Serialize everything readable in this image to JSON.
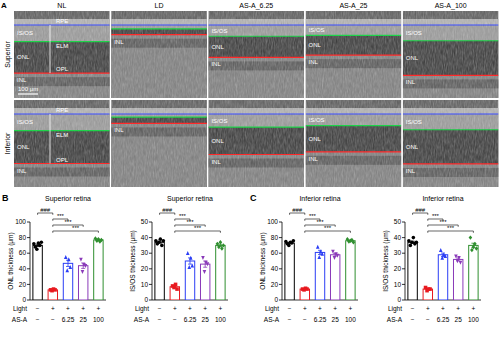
{
  "figure": {
    "panel_labels": [
      "A",
      "B",
      "C"
    ],
    "images": {
      "columns": [
        "NL",
        "LD",
        "AS-A_6.25",
        "AS-A_25",
        "AS-A_100"
      ],
      "rows": [
        "Superior",
        "Inferior"
      ],
      "layer_labels": [
        [
          "RPE",
          "IS/OS",
          "ELM",
          "ONL",
          "OPL",
          "INL"
        ],
        [
          "INL"
        ],
        [
          "IS/OS",
          "ONL",
          "INL"
        ],
        [
          "IS/OS",
          "ONL",
          "INL"
        ],
        [
          "IS/OS",
          "ONL",
          "INL"
        ]
      ],
      "scale_bar": "100 μm"
    }
  },
  "chart_data": [
    {
      "type": "bar",
      "title": "Superior retina",
      "y_label": "ONL thickness (μm)",
      "categories": [
        null,
        null,
        null,
        null,
        null
      ],
      "values": [
        70,
        13,
        47,
        44,
        77
      ],
      "errors": [
        1.5,
        0.5,
        4,
        3.5,
        1
      ],
      "points": [
        [
          72,
          68,
          65,
          73,
          70,
          74
        ],
        [
          13,
          12,
          14,
          13
        ],
        [
          55,
          38,
          52,
          42
        ],
        [
          52,
          36,
          45,
          44
        ],
        [
          79,
          76,
          78,
          75,
          77
        ]
      ],
      "colors": [
        "#000000",
        "#e8191f",
        "#2a3df5",
        "#8a3ab9",
        "#2f8f2f"
      ],
      "ylim": [
        0,
        100
      ],
      "yticks": [
        0,
        20,
        40,
        60,
        80,
        100
      ],
      "x_table": [
        {
          "label": "Light",
          "values": [
            "−",
            "+",
            "+",
            "+",
            "+"
          ]
        },
        {
          "label": "AS-A",
          "values": [
            "−",
            "−",
            "6.25",
            "25",
            "100"
          ]
        }
      ],
      "comparisons": [
        {
          "groups": [
            0,
            1
          ],
          "label": "###"
        },
        {
          "groups": [
            1,
            2
          ],
          "label": "***"
        },
        {
          "groups": [
            1,
            3
          ],
          "label": "***"
        },
        {
          "groups": [
            1,
            4
          ],
          "label": "***"
        }
      ]
    },
    {
      "type": "bar",
      "title": "Superior retina",
      "y_label": "IS/OS thickness (μm)",
      "categories": [
        null,
        null,
        null,
        null,
        null
      ],
      "values": [
        37,
        8.5,
        25,
        23,
        35
      ],
      "errors": [
        0.6,
        0.6,
        2,
        2,
        0.7
      ],
      "points": [
        [
          38,
          36,
          37,
          39,
          35,
          38
        ],
        [
          9,
          8,
          10,
          7
        ],
        [
          30,
          21,
          27,
          22
        ],
        [
          27,
          18,
          24,
          23
        ],
        [
          36,
          34,
          37,
          33,
          35
        ]
      ],
      "colors": [
        "#000000",
        "#e8191f",
        "#2a3df5",
        "#8a3ab9",
        "#2f8f2f"
      ],
      "ylim": [
        0,
        50
      ],
      "yticks": [
        0,
        10,
        20,
        30,
        40,
        50
      ],
      "x_table": [
        {
          "label": "Light",
          "values": [
            "−",
            "+",
            "+",
            "+",
            "+"
          ]
        },
        {
          "label": "AS-A",
          "values": [
            "−",
            "−",
            "6.25",
            "25",
            "100"
          ]
        }
      ],
      "comparisons": [
        {
          "groups": [
            0,
            1
          ],
          "label": "###"
        },
        {
          "groups": [
            1,
            2
          ],
          "label": "***"
        },
        {
          "groups": [
            1,
            3
          ],
          "label": "***"
        },
        {
          "groups": [
            1,
            4
          ],
          "label": "***"
        }
      ]
    },
    {
      "type": "bar",
      "title": "Inferior retina",
      "y_label": "ONL thickness (μm)",
      "categories": [
        null,
        null,
        null,
        null,
        null
      ],
      "values": [
        73,
        14,
        61,
        58,
        76
      ],
      "errors": [
        0.9,
        0.4,
        2.7,
        1.7,
        0.7
      ],
      "points": [
        [
          75,
          72,
          70,
          74,
          73,
          76
        ],
        [
          14,
          13,
          15,
          14
        ],
        [
          68,
          55,
          62,
          59
        ],
        [
          62,
          54,
          59,
          57
        ],
        [
          78,
          75,
          76,
          77,
          74
        ]
      ],
      "colors": [
        "#000000",
        "#e8191f",
        "#2a3df5",
        "#8a3ab9",
        "#2f8f2f"
      ],
      "ylim": [
        0,
        100
      ],
      "yticks": [
        0,
        20,
        40,
        60,
        80,
        100
      ],
      "x_table": [
        {
          "label": "Light",
          "values": [
            "−",
            "+",
            "+",
            "+",
            "+"
          ]
        },
        {
          "label": "AS-A",
          "values": [
            "−",
            "−",
            "6.25",
            "25",
            "100"
          ]
        }
      ],
      "comparisons": [
        {
          "groups": [
            0,
            1
          ],
          "label": "###"
        },
        {
          "groups": [
            1,
            2
          ],
          "label": "***"
        },
        {
          "groups": [
            1,
            3
          ],
          "label": "***"
        },
        {
          "groups": [
            1,
            4
          ],
          "label": "***"
        }
      ]
    },
    {
      "type": "bar",
      "title": "Inferior retina",
      "y_label": "IS/OS thickness (μm)",
      "categories": [
        null,
        null,
        null,
        null,
        null
      ],
      "values": [
        37,
        7,
        29,
        26,
        35
      ],
      "errors": [
        0.7,
        0.4,
        1.1,
        0.9,
        1.4
      ],
      "points": [
        [
          38,
          35,
          37,
          40,
          36,
          37
        ],
        [
          8,
          6,
          7,
          7
        ],
        [
          32,
          27,
          29,
          28
        ],
        [
          28,
          25,
          27,
          24
        ],
        [
          40,
          32,
          34,
          36,
          33
        ]
      ],
      "colors": [
        "#000000",
        "#e8191f",
        "#2a3df5",
        "#8a3ab9",
        "#2f8f2f"
      ],
      "ylim": [
        0,
        50
      ],
      "yticks": [
        0,
        10,
        20,
        30,
        40,
        50
      ],
      "x_table": [
        {
          "label": "Light",
          "values": [
            "−",
            "+",
            "+",
            "+",
            "+"
          ]
        },
        {
          "label": "AS-A",
          "values": [
            "−",
            "−",
            "6.25",
            "25",
            "100"
          ]
        }
      ],
      "comparisons": [
        {
          "groups": [
            0,
            1
          ],
          "label": "###"
        },
        {
          "groups": [
            1,
            2
          ],
          "label": "***"
        },
        {
          "groups": [
            1,
            3
          ],
          "label": "***"
        },
        {
          "groups": [
            1,
            4
          ],
          "label": "***"
        }
      ]
    }
  ]
}
